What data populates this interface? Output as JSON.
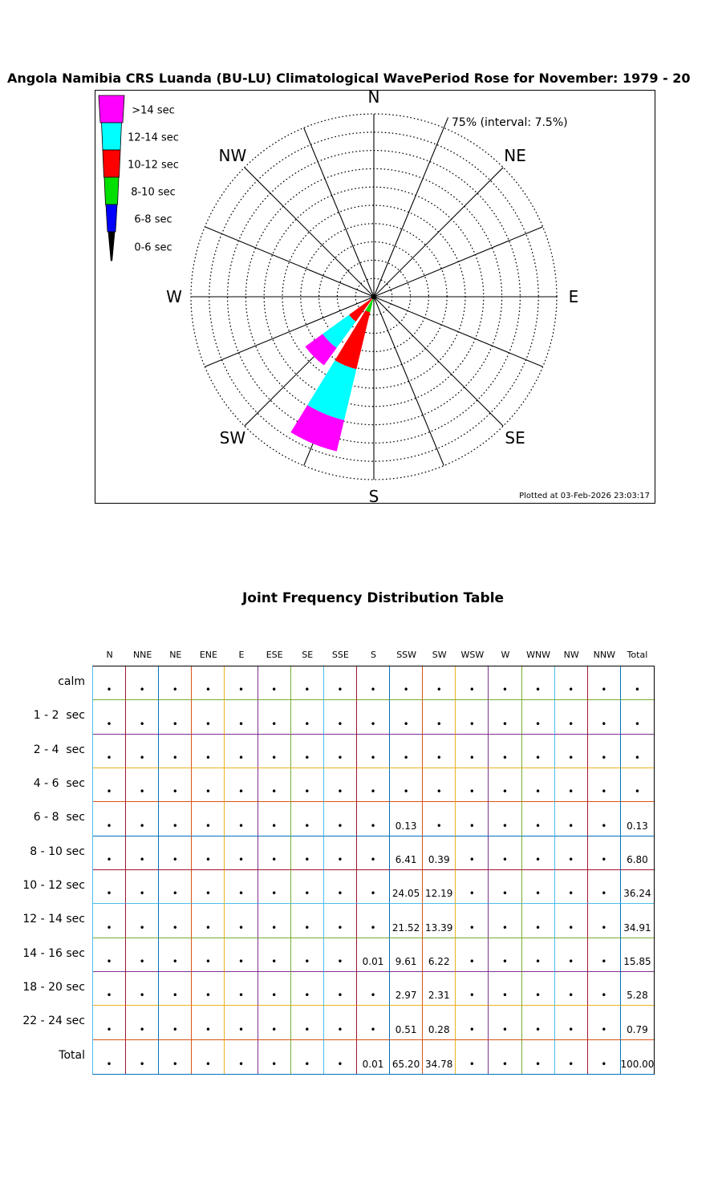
{
  "style": {
    "grid_palette": [
      "#0072BD",
      "#D95319",
      "#EDB120",
      "#7E2F8E",
      "#77AC30",
      "#4DBEEE",
      "#A2142F"
    ],
    "table_border": {
      "top": "#000000",
      "right": "#000000",
      "left": "#4DBEEE",
      "bottom": "#0072BD"
    },
    "background": "#ffffff",
    "axis_color": "#000000"
  },
  "chart_data": [
    {
      "type": "rose",
      "title": "Angola Namibia CRS Luanda (BU-LU) Climatological WavePeriod Rose for November: 1979 - 20",
      "scale_label": "75% (interval: 7.5%)",
      "max_radius_pct": 75,
      "ring_interval_pct": 7.5,
      "num_rings": 10,
      "num_sectors": 16,
      "petal_width_deg": 18,
      "direction_labels": [
        "N",
        "NE",
        "E",
        "SE",
        "S",
        "SW",
        "W",
        "NW"
      ],
      "legend": [
        {
          "label": ">14 sec",
          "color": "#FF00FF"
        },
        {
          "label": "12-14 sec",
          "color": "#00FFFF"
        },
        {
          "label": "10-12 sec",
          "color": "#FF0000"
        },
        {
          "label": "8-10 sec",
          "color": "#00E000"
        },
        {
          "label": "6-8 sec",
          "color": "#0000FF"
        },
        {
          "label": "0-6 sec",
          "color": "#000000"
        }
      ],
      "petals": [
        {
          "direction": "S",
          "bearing": 180,
          "bands": [
            {
              "period": ">14 sec",
              "value": 0.01
            }
          ]
        },
        {
          "direction": "SSW",
          "bearing": 202.5,
          "bands": [
            {
              "period": "6-8 sec",
              "value": 0.13
            },
            {
              "period": "8-10 sec",
              "value": 6.41
            },
            {
              "period": "10-12 sec",
              "value": 24.05
            },
            {
              "period": "12-14 sec",
              "value": 21.52
            },
            {
              "period": ">14 sec",
              "value": 13.09
            }
          ]
        },
        {
          "direction": "SW",
          "bearing": 225,
          "bands": [
            {
              "period": "8-10 sec",
              "value": 0.39
            },
            {
              "period": "10-12 sec",
              "value": 12.19
            },
            {
              "period": "12-14 sec",
              "value": 13.39
            },
            {
              "period": ">14 sec",
              "value": 8.81
            }
          ]
        }
      ],
      "footer": "Plotted at 03-Feb-2026 23:03:17"
    },
    {
      "type": "table",
      "title": "Joint Frequency Distribution Table",
      "columns": [
        "N",
        "NNE",
        "NE",
        "ENE",
        "E",
        "ESE",
        "SE",
        "SSE",
        "S",
        "SSW",
        "SW",
        "WSW",
        "W",
        "WNW",
        "NW",
        "NNW",
        "Total"
      ],
      "rows": [
        {
          "label": "calm",
          "values": [
            "•",
            "•",
            "•",
            "•",
            "•",
            "•",
            "•",
            "•",
            "•",
            "•",
            "•",
            "•",
            "•",
            "•",
            "•",
            "•",
            "•"
          ]
        },
        {
          "label": "1 - 2  sec",
          "values": [
            "•",
            "•",
            "•",
            "•",
            "•",
            "•",
            "•",
            "•",
            "•",
            "•",
            "•",
            "•",
            "•",
            "•",
            "•",
            "•",
            "•"
          ]
        },
        {
          "label": "2 - 4  sec",
          "values": [
            "•",
            "•",
            "•",
            "•",
            "•",
            "•",
            "•",
            "•",
            "•",
            "•",
            "•",
            "•",
            "•",
            "•",
            "•",
            "•",
            "•"
          ]
        },
        {
          "label": "4 - 6  sec",
          "values": [
            "•",
            "•",
            "•",
            "•",
            "•",
            "•",
            "•",
            "•",
            "•",
            "•",
            "•",
            "•",
            "•",
            "•",
            "•",
            "•",
            "•"
          ]
        },
        {
          "label": "6 - 8  sec",
          "values": [
            "•",
            "•",
            "•",
            "•",
            "•",
            "•",
            "•",
            "•",
            "•",
            "0.13",
            "•",
            "•",
            "•",
            "•",
            "•",
            "•",
            "0.13"
          ]
        },
        {
          "label": "8 - 10 sec",
          "values": [
            "•",
            "•",
            "•",
            "•",
            "•",
            "•",
            "•",
            "•",
            "•",
            "6.41",
            "0.39",
            "•",
            "•",
            "•",
            "•",
            "•",
            "6.80"
          ]
        },
        {
          "label": "10 - 12 sec",
          "values": [
            "•",
            "•",
            "•",
            "•",
            "•",
            "•",
            "•",
            "•",
            "•",
            "24.05",
            "12.19",
            "•",
            "•",
            "•",
            "•",
            "•",
            "36.24"
          ]
        },
        {
          "label": "12 - 14 sec",
          "values": [
            "•",
            "•",
            "•",
            "•",
            "•",
            "•",
            "•",
            "•",
            "•",
            "21.52",
            "13.39",
            "•",
            "•",
            "•",
            "•",
            "•",
            "34.91"
          ]
        },
        {
          "label": "14 - 16 sec",
          "values": [
            "•",
            "•",
            "•",
            "•",
            "•",
            "•",
            "•",
            "•",
            "0.01",
            "9.61",
            "6.22",
            "•",
            "•",
            "•",
            "•",
            "•",
            "15.85"
          ]
        },
        {
          "label": "18 - 20 sec",
          "values": [
            "•",
            "•",
            "•",
            "•",
            "•",
            "•",
            "•",
            "•",
            "•",
            "2.97",
            "2.31",
            "•",
            "•",
            "•",
            "•",
            "•",
            "5.28"
          ]
        },
        {
          "label": "22 - 24 sec",
          "values": [
            "•",
            "•",
            "•",
            "•",
            "•",
            "•",
            "•",
            "•",
            "•",
            "0.51",
            "0.28",
            "•",
            "•",
            "•",
            "•",
            "•",
            "0.79"
          ]
        },
        {
          "label": "Total",
          "values": [
            "•",
            "•",
            "•",
            "•",
            "•",
            "•",
            "•",
            "•",
            "0.01",
            "65.20",
            "34.78",
            "•",
            "•",
            "•",
            "•",
            "•",
            "100.00"
          ]
        }
      ]
    }
  ]
}
